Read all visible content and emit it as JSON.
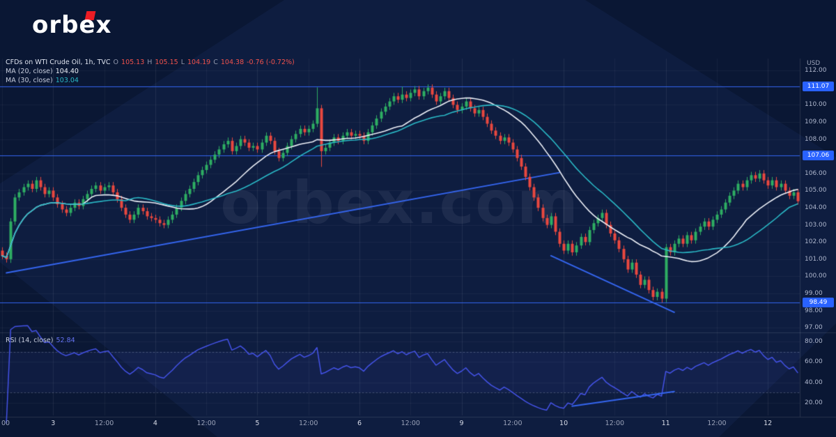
{
  "logo": {
    "text": "orbex"
  },
  "watermark": {
    "text": "orbex.com"
  },
  "legend": {
    "title": "CFDs on WTI Crude Oil, 1h, TVC",
    "o_label": "O",
    "o": "105.13",
    "h_label": "H",
    "h": "105.15",
    "l_label": "L",
    "l": "104.19",
    "c_label": "C",
    "c": "104.38",
    "change": "-0.76 (-0.72%)",
    "ma20_label": "MA (20, close)",
    "ma20_value": "104.40",
    "ma30_label": "MA (30, close)",
    "ma30_value": "103.04",
    "rsi_label": "RSI (14, close)",
    "rsi_value": "52.84"
  },
  "colors": {
    "background": "#0e1d40",
    "grid": "rgba(255,255,255,0.05)",
    "grid_day": "rgba(255,255,255,0.08)",
    "separator": "rgba(255,255,255,0.12)",
    "up": "#2eae63",
    "down": "#e9483f",
    "ma20": "#eef1f8",
    "ma30": "#2ab8c5",
    "line_blue": "#3566f0",
    "badge_bg": "#2962ff",
    "rsi_line": "#4553e8",
    "rsi_band": "rgba(80,100,240,0.07)",
    "rsi_dashed": "rgba(170,178,200,0.35)",
    "watermark": "rgba(222,230,248,0.075)",
    "logo_red": "#ed1c24"
  },
  "chart_data": {
    "type": "candlestick",
    "title": "CFDs on WTI Crude Oil, 1h, TVC",
    "interval": "1h",
    "x_axis": {
      "bars": 188,
      "ticks": [
        {
          "bar": 0,
          "label": "00",
          "day": false
        },
        {
          "bar": 12,
          "label": "3",
          "day": true
        },
        {
          "bar": 24,
          "label": "12:00",
          "day": false
        },
        {
          "bar": 36,
          "label": "4",
          "day": true
        },
        {
          "bar": 48,
          "label": "12:00",
          "day": false
        },
        {
          "bar": 60,
          "label": "5",
          "day": true
        },
        {
          "bar": 72,
          "label": "12:00",
          "day": false
        },
        {
          "bar": 84,
          "label": "6",
          "day": true
        },
        {
          "bar": 96,
          "label": "12:00",
          "day": false
        },
        {
          "bar": 108,
          "label": "9",
          "day": true
        },
        {
          "bar": 120,
          "label": "12:00",
          "day": false
        },
        {
          "bar": 132,
          "label": "10",
          "day": true
        },
        {
          "bar": 144,
          "label": "12:00",
          "day": false
        },
        {
          "bar": 156,
          "label": "11",
          "day": true
        },
        {
          "bar": 168,
          "label": "12:00",
          "day": false
        },
        {
          "bar": 180,
          "label": "12",
          "day": true
        }
      ]
    },
    "y_axis_price": {
      "unit": "USD",
      "range": [
        96.85,
        112.7
      ],
      "ticks": [
        112,
        110,
        109,
        108,
        106,
        105,
        104,
        103,
        102,
        101,
        100,
        99,
        98,
        97
      ]
    },
    "y_axis_rsi": {
      "range": [
        7.5,
        85.5
      ],
      "ticks": [
        80,
        60,
        40,
        20
      ]
    },
    "candles": {
      "first_open": 101.5,
      "default_wick": 0.18,
      "closes": [
        101.2,
        101.0,
        103.2,
        104.6,
        104.9,
        105.2,
        105.4,
        105.1,
        105.6,
        105.2,
        104.8,
        105.0,
        104.6,
        104.2,
        103.9,
        103.7,
        104.0,
        104.3,
        104.1,
        104.5,
        104.8,
        105.1,
        105.3,
        105.0,
        105.2,
        105.3,
        104.9,
        104.5,
        104.0,
        103.6,
        103.3,
        103.6,
        104.0,
        103.8,
        103.5,
        103.4,
        103.3,
        103.1,
        103.0,
        103.3,
        103.6,
        104.0,
        104.4,
        104.8,
        105.1,
        105.5,
        105.9,
        106.2,
        106.5,
        106.8,
        107.1,
        107.4,
        107.7,
        107.9,
        107.3,
        107.6,
        108.0,
        107.8,
        107.5,
        107.6,
        107.4,
        107.8,
        108.2,
        107.9,
        107.3,
        106.9,
        107.2,
        107.6,
        108.0,
        108.3,
        108.6,
        108.4,
        108.6,
        108.9,
        109.8,
        107.3,
        107.5,
        107.8,
        108.1,
        107.9,
        108.2,
        108.4,
        108.2,
        108.3,
        108.2,
        107.9,
        108.4,
        108.8,
        109.2,
        109.6,
        109.9,
        110.2,
        110.5,
        110.3,
        110.6,
        110.4,
        110.7,
        110.9,
        110.5,
        110.8,
        111.0,
        110.6,
        110.2,
        110.5,
        110.8,
        110.4,
        110.0,
        109.7,
        109.9,
        110.2,
        109.8,
        109.5,
        109.7,
        109.3,
        108.9,
        108.5,
        108.2,
        107.9,
        108.1,
        107.8,
        107.4,
        106.9,
        106.4,
        105.8,
        105.2,
        104.6,
        104.0,
        103.4,
        103.0,
        103.5,
        102.6,
        101.9,
        101.5,
        101.9,
        101.4,
        101.8,
        102.3,
        102.0,
        102.7,
        103.1,
        103.4,
        103.7,
        103.0,
        102.5,
        102.1,
        101.6,
        101.0,
        100.4,
        100.8,
        100.1,
        99.5,
        99.8,
        99.2,
        98.8,
        99.1,
        98.7,
        101.7,
        101.4,
        101.9,
        102.2,
        101.9,
        102.4,
        102.1,
        102.6,
        102.9,
        103.2,
        102.9,
        103.3,
        103.6,
        103.9,
        104.3,
        104.7,
        105.0,
        105.4,
        105.2,
        105.6,
        105.9,
        105.7,
        106.0,
        105.6,
        105.3,
        105.6,
        105.2,
        105.4,
        105.0,
        104.7,
        104.9,
        104.38
      ],
      "wick_overrides": {
        "2": [
          null,
          100.8
        ],
        "74": [
          111.0,
          null
        ],
        "75": [
          109.9,
          106.4
        ],
        "94": [
          111.05,
          null
        ],
        "100": [
          111.07,
          null
        ],
        "155": [
          null,
          98.49
        ],
        "156": [
          null,
          98.5
        ]
      }
    },
    "ohlc_last": {
      "o": 105.13,
      "h": 105.15,
      "l": 104.19,
      "c": 104.38,
      "change": -0.76,
      "change_pct": -0.72
    },
    "indicators": [
      {
        "name": "MA",
        "period": 20,
        "source": "close",
        "last": 104.4,
        "color_key": "ma20"
      },
      {
        "name": "MA",
        "period": 30,
        "source": "close",
        "last": 103.04,
        "color_key": "ma30"
      },
      {
        "name": "RSI",
        "period": 14,
        "source": "close",
        "last": 52.84,
        "color_key": "rsi_line",
        "levels": [
          70,
          30
        ]
      }
    ],
    "levels": [
      {
        "price": 111.07,
        "label": "111.07"
      },
      {
        "price": 107.06,
        "label": "107.06"
      },
      {
        "price": 98.49,
        "label": "98.49"
      }
    ],
    "trendlines_price": [
      {
        "from_bar": 1,
        "from_price": 100.2,
        "to_bar": 131,
        "to_price": 106.05
      },
      {
        "from_bar": 129,
        "from_price": 101.2,
        "to_bar": 158,
        "to_price": 97.9
      }
    ],
    "trendline_rsi": {
      "from_bar": 134,
      "from_value": 16.5,
      "to_bar": 158,
      "to_value": 31
    }
  }
}
